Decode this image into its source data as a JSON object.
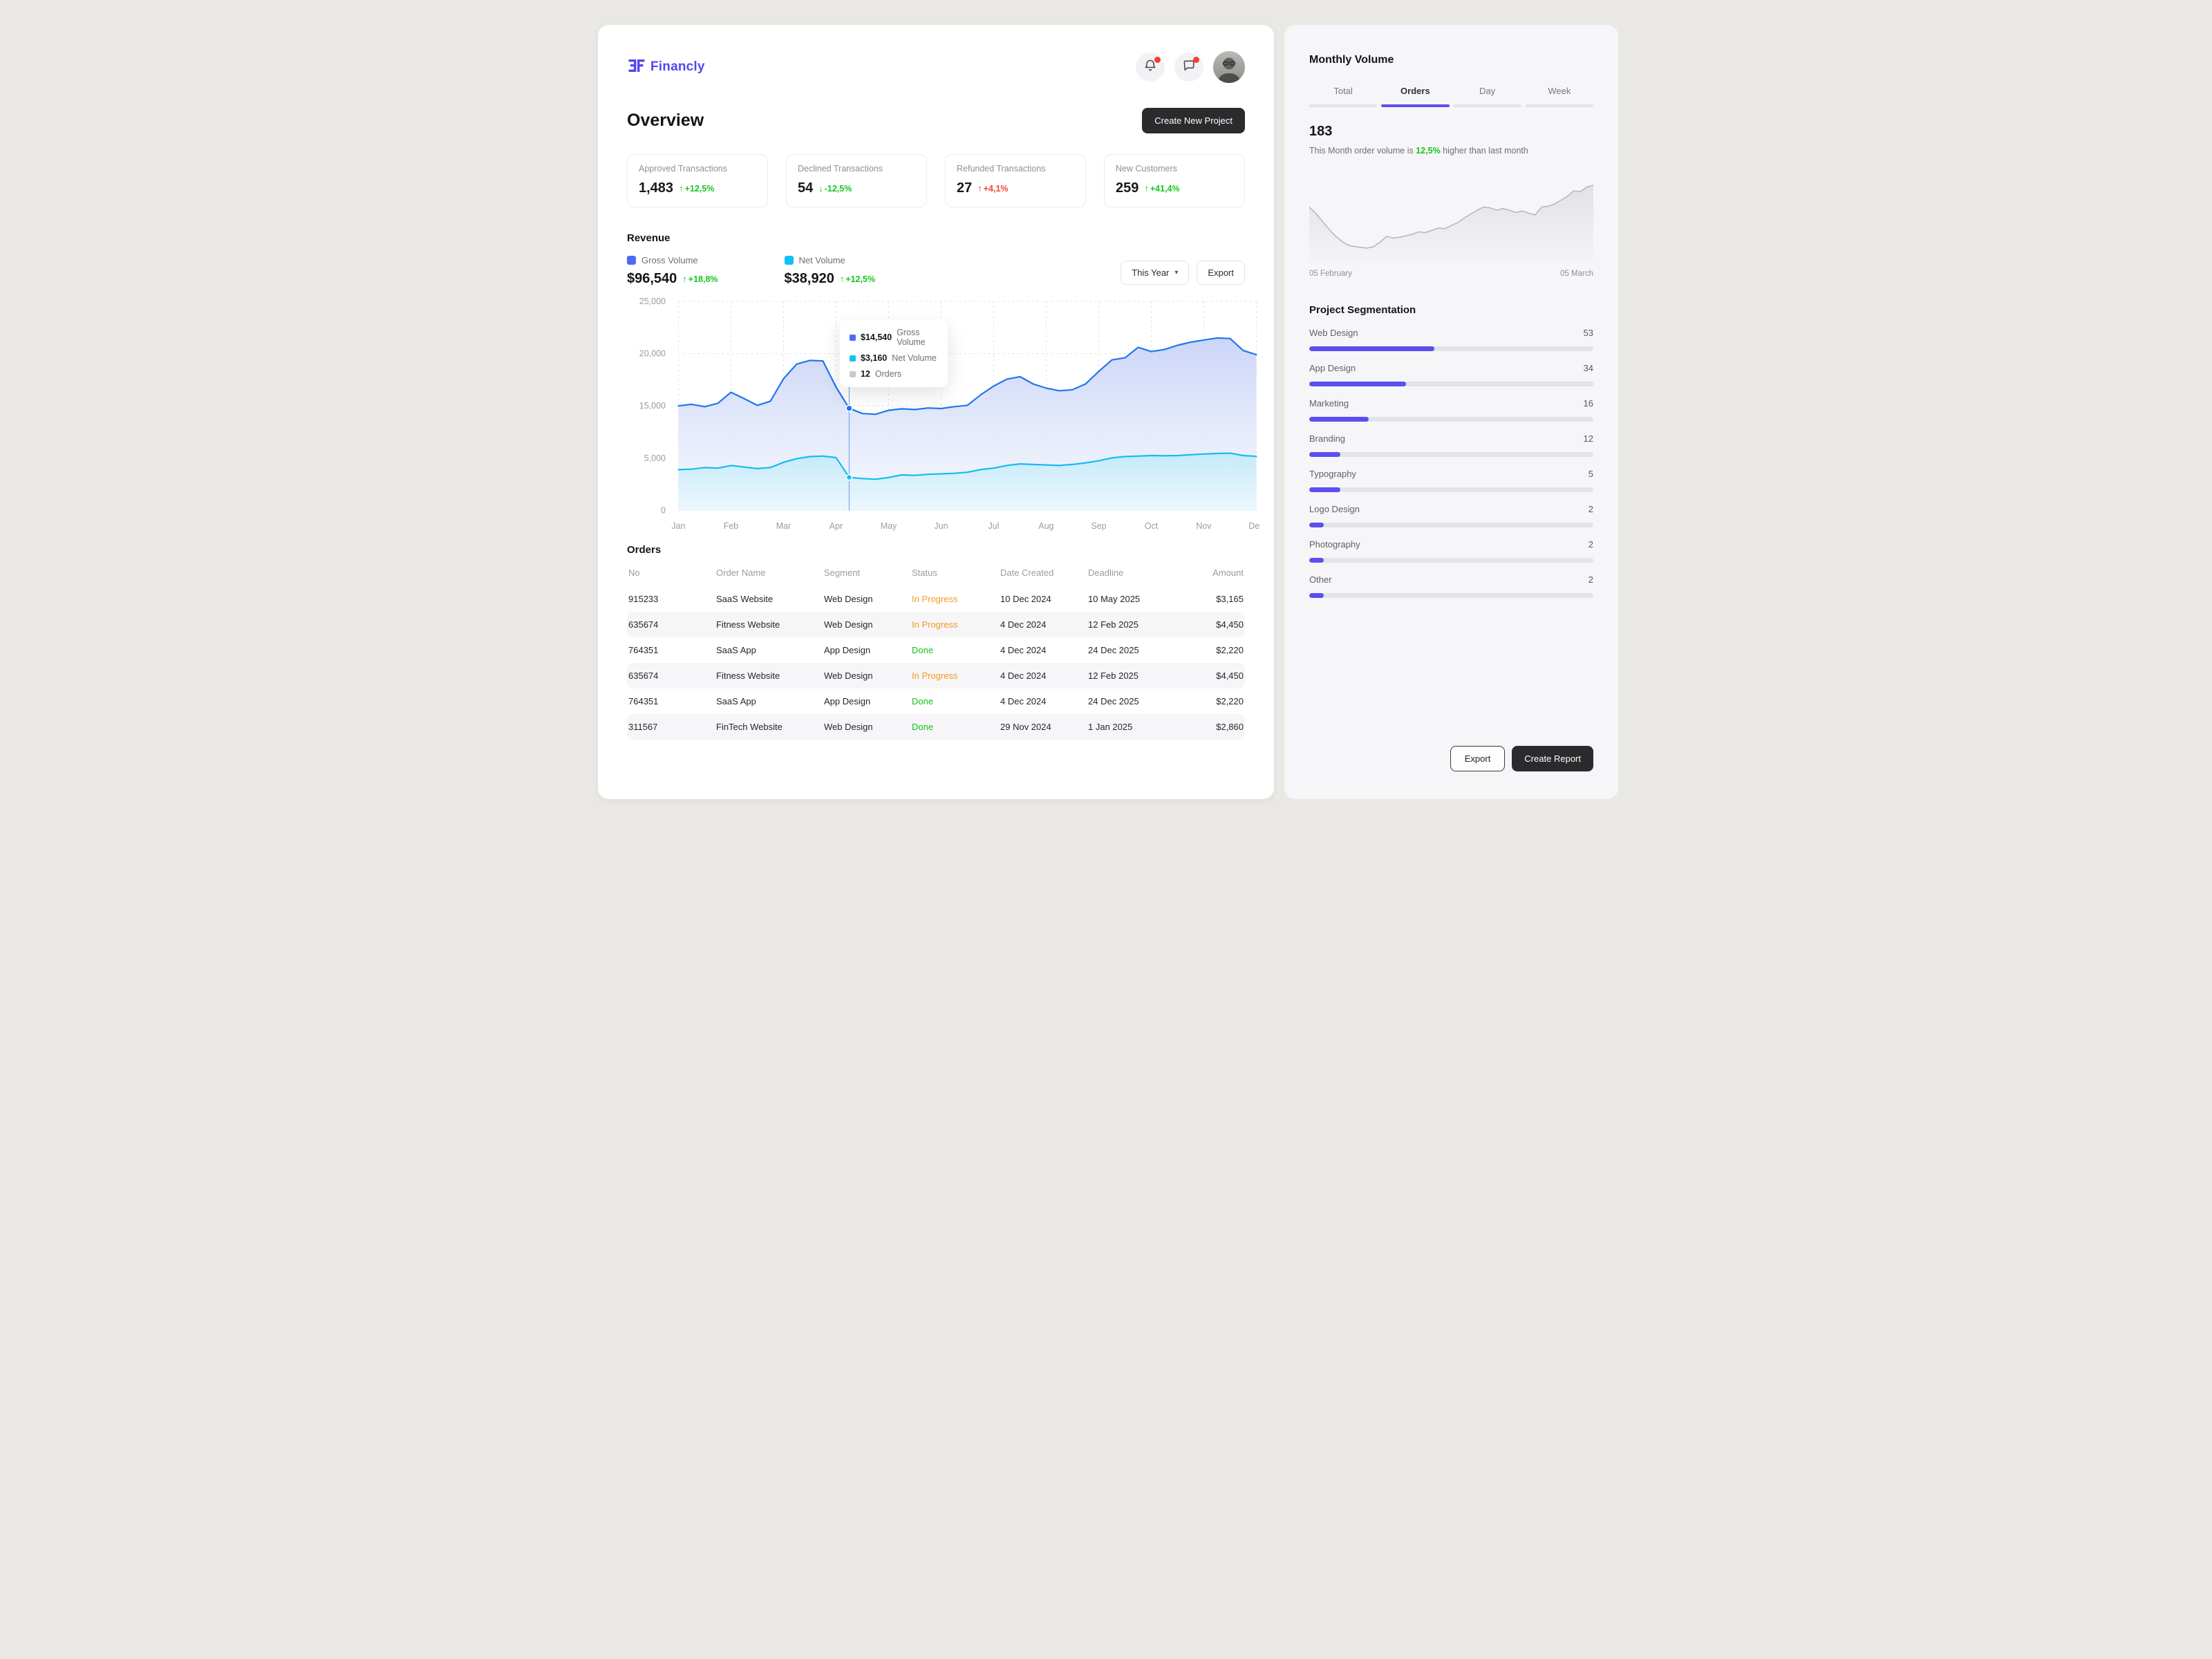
{
  "brand": {
    "name": "Financly",
    "accent": "#5547ee"
  },
  "page_title": "Overview",
  "header": {
    "create_project_label": "Create New Project"
  },
  "stats": [
    {
      "label": "Approved Transactions",
      "value": "1,483",
      "change": "+12,5%",
      "direction": "up",
      "tone": "green"
    },
    {
      "label": "Declined Transactions",
      "value": "54",
      "change": "-12,5%",
      "direction": "down",
      "tone": "green"
    },
    {
      "label": "Refunded Transactions",
      "value": "27",
      "change": "+4,1%",
      "direction": "up",
      "tone": "red"
    },
    {
      "label": "New Customers",
      "value": "259",
      "change": "+41,4%",
      "direction": "up",
      "tone": "green"
    }
  ],
  "revenue": {
    "title": "Revenue",
    "legends": [
      {
        "name": "Gross Volume",
        "value": "$96,540",
        "change": "+18,8%",
        "color": "#4a6cf7"
      },
      {
        "name": "Net Volume",
        "value": "$38,920",
        "change": "+12,5%",
        "color": "#10c3f6"
      }
    ],
    "range_label": "This Year",
    "export_label": "Export"
  },
  "chart_data": {
    "type": "area",
    "title": "Revenue by month",
    "x": [
      "Jan",
      "Feb",
      "Mar",
      "Apr",
      "May",
      "Jun",
      "Jul",
      "Aug",
      "Sep",
      "Oct",
      "Nov",
      "Dec"
    ],
    "y_ticks": {
      "labels": [
        "25,000",
        "20,000",
        "15,000",
        "5,000",
        "0"
      ],
      "values": [
        25000,
        20000,
        15000,
        5000,
        0
      ]
    },
    "axis_note": "evenly spaced gridlines as labeled (10,000 skipped)",
    "grid": true,
    "series": [
      {
        "name": "Gross Volume",
        "line_color": "#2176ee",
        "values": [
          15000,
          15150,
          14850,
          15250,
          16300,
          15700,
          15050,
          15450,
          17600,
          19000,
          19350,
          19300,
          16800,
          14540,
          13550,
          13400,
          14150,
          14450,
          14300,
          14600,
          14500,
          14850,
          15050,
          16050,
          16900,
          17550,
          17800,
          17100,
          16700,
          16450,
          16550,
          17100,
          18300,
          19400,
          19600,
          20600,
          20200,
          20400,
          20800,
          21100,
          21300,
          21500,
          21450,
          20300,
          19900
        ]
      },
      {
        "name": "Net Volume",
        "line_color": "#14bcf1",
        "values": [
          3900,
          3950,
          4100,
          4050,
          4300,
          4150,
          4000,
          4100,
          4600,
          4950,
          5300,
          5400,
          5100,
          3160,
          3050,
          2980,
          3150,
          3400,
          3350,
          3450,
          3500,
          3550,
          3650,
          3900,
          4050,
          4300,
          4450,
          4400,
          4350,
          4300,
          4400,
          4550,
          4750,
          5050,
          5300,
          5400,
          5500,
          5450,
          5500,
          5650,
          5800,
          5900,
          5950,
          5500,
          5350
        ]
      }
    ],
    "tooltip": {
      "point_index": 13,
      "rows": [
        {
          "value": "$14,540",
          "label": "Gross Volume",
          "color": "#4a6cf7"
        },
        {
          "value": "$3,160",
          "label": "Net Volume",
          "color": "#10c3f6"
        },
        {
          "value": "12",
          "label": "Orders",
          "color": "#c9c9cd"
        }
      ]
    }
  },
  "orders": {
    "title": "Orders",
    "columns": [
      "No",
      "Order Name",
      "Segment",
      "Status",
      "Date Created",
      "Deadline",
      "Amount"
    ],
    "rows": [
      {
        "no": "915233",
        "name": "SaaS Website",
        "segment": "Web Design",
        "status": "In Progress",
        "created": "10 Dec 2024",
        "deadline": "10 May 2025",
        "amount": "$3,165"
      },
      {
        "no": "635674",
        "name": "Fitness Website",
        "segment": "Web Design",
        "status": "In Progress",
        "created": "4 Dec 2024",
        "deadline": "12 Feb 2025",
        "amount": "$4,450"
      },
      {
        "no": "764351",
        "name": "SaaS App",
        "segment": "App Design",
        "status": "Done",
        "created": "4 Dec 2024",
        "deadline": "24 Dec 2025",
        "amount": "$2,220"
      },
      {
        "no": "635674",
        "name": "Fitness Website",
        "segment": "Web Design",
        "status": "In Progress",
        "created": "4 Dec 2024",
        "deadline": "12 Feb 2025",
        "amount": "$4,450"
      },
      {
        "no": "764351",
        "name": "SaaS App",
        "segment": "App Design",
        "status": "Done",
        "created": "4 Dec 2024",
        "deadline": "24 Dec 2025",
        "amount": "$2,220"
      },
      {
        "no": "311567",
        "name": "FinTech Website",
        "segment": "Web Design",
        "status": "Done",
        "created": "29 Nov 2024",
        "deadline": "1 Jan 2025",
        "amount": "$2,860"
      }
    ]
  },
  "monthly": {
    "title": "Monthly Volume",
    "tabs": [
      "Total",
      "Orders",
      "Day",
      "Week"
    ],
    "active_tab_index": 1,
    "value": "183",
    "desc_prefix": "This Month order volume is ",
    "desc_highlight": "12,5%",
    "desc_suffix": " higher than last month",
    "start_label": "05 February",
    "end_label": "05 March",
    "spark_values": [
      62,
      54,
      44,
      34,
      25,
      18,
      13,
      11,
      10,
      9,
      11,
      17,
      24,
      22,
      23,
      25,
      27,
      30,
      29,
      32,
      35,
      34,
      38,
      42,
      48,
      53,
      58,
      62,
      61,
      58,
      60,
      58,
      55,
      57,
      54,
      52,
      62,
      63,
      66,
      71,
      76,
      83,
      82,
      88,
      90
    ]
  },
  "segmentation": {
    "title": "Project Segmentation",
    "items": [
      {
        "label": "Web Design",
        "value": "53",
        "pct": 44
      },
      {
        "label": "App Design",
        "value": "34",
        "pct": 34
      },
      {
        "label": "Marketing",
        "value": "16",
        "pct": 21
      },
      {
        "label": "Branding",
        "value": "12",
        "pct": 11
      },
      {
        "label": "Typography",
        "value": "5",
        "pct": 11
      },
      {
        "label": "Logo Design",
        "value": "2",
        "pct": 5
      },
      {
        "label": "Photography",
        "value": "2",
        "pct": 5
      },
      {
        "label": "Other",
        "value": "2",
        "pct": 5
      }
    ]
  },
  "side_actions": {
    "export": "Export",
    "create_report": "Create Report"
  },
  "colors": {
    "accent": "#5b4ff0",
    "gross_line": "#2176ee",
    "net_line": "#14bcf1",
    "green": "#17c51e",
    "red": "#f4423c",
    "orange": "#f59a23",
    "dark_button": "#2b2b2e"
  }
}
